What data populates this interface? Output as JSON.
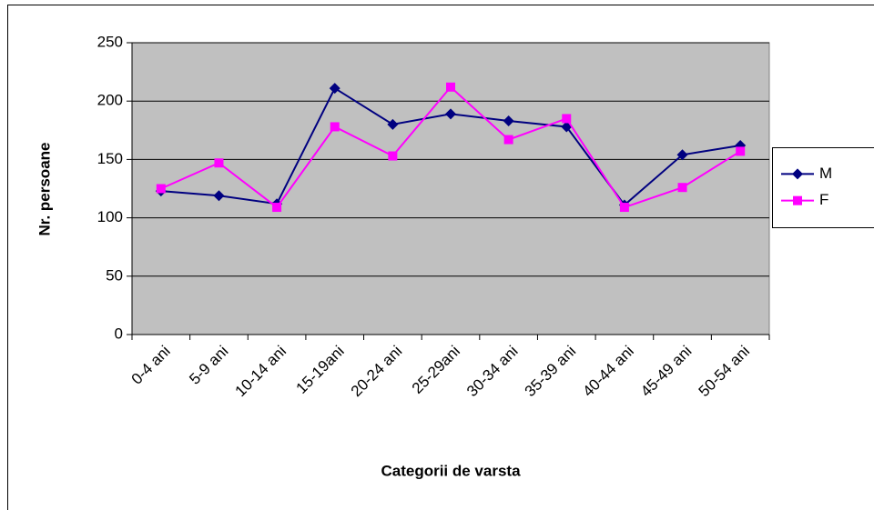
{
  "chart_data": {
    "type": "line",
    "y_label": "Nr. persoane",
    "x_label": "Categorii de varsta",
    "categories": [
      "0-4 ani",
      "5-9 ani",
      "10-14 ani",
      "15-19ani",
      "20-24 ani",
      "25-29ani",
      "30-34 ani",
      "35-39 ani",
      "40-44 ani",
      "45-49 ani",
      "50-54 ani"
    ],
    "series": [
      {
        "name": "M",
        "color": "#000080",
        "marker": "diamond",
        "values": [
          123,
          119,
          112,
          211,
          180,
          189,
          183,
          178,
          111,
          154,
          162
        ]
      },
      {
        "name": "F",
        "color": "#ff00ff",
        "marker": "square",
        "values": [
          125,
          147,
          109,
          178,
          153,
          212,
          167,
          185,
          109,
          126,
          157
        ]
      }
    ],
    "ylim": [
      0,
      250
    ],
    "yticks": [
      0,
      50,
      100,
      150,
      200,
      250
    ],
    "grid": true,
    "legend": "right"
  }
}
